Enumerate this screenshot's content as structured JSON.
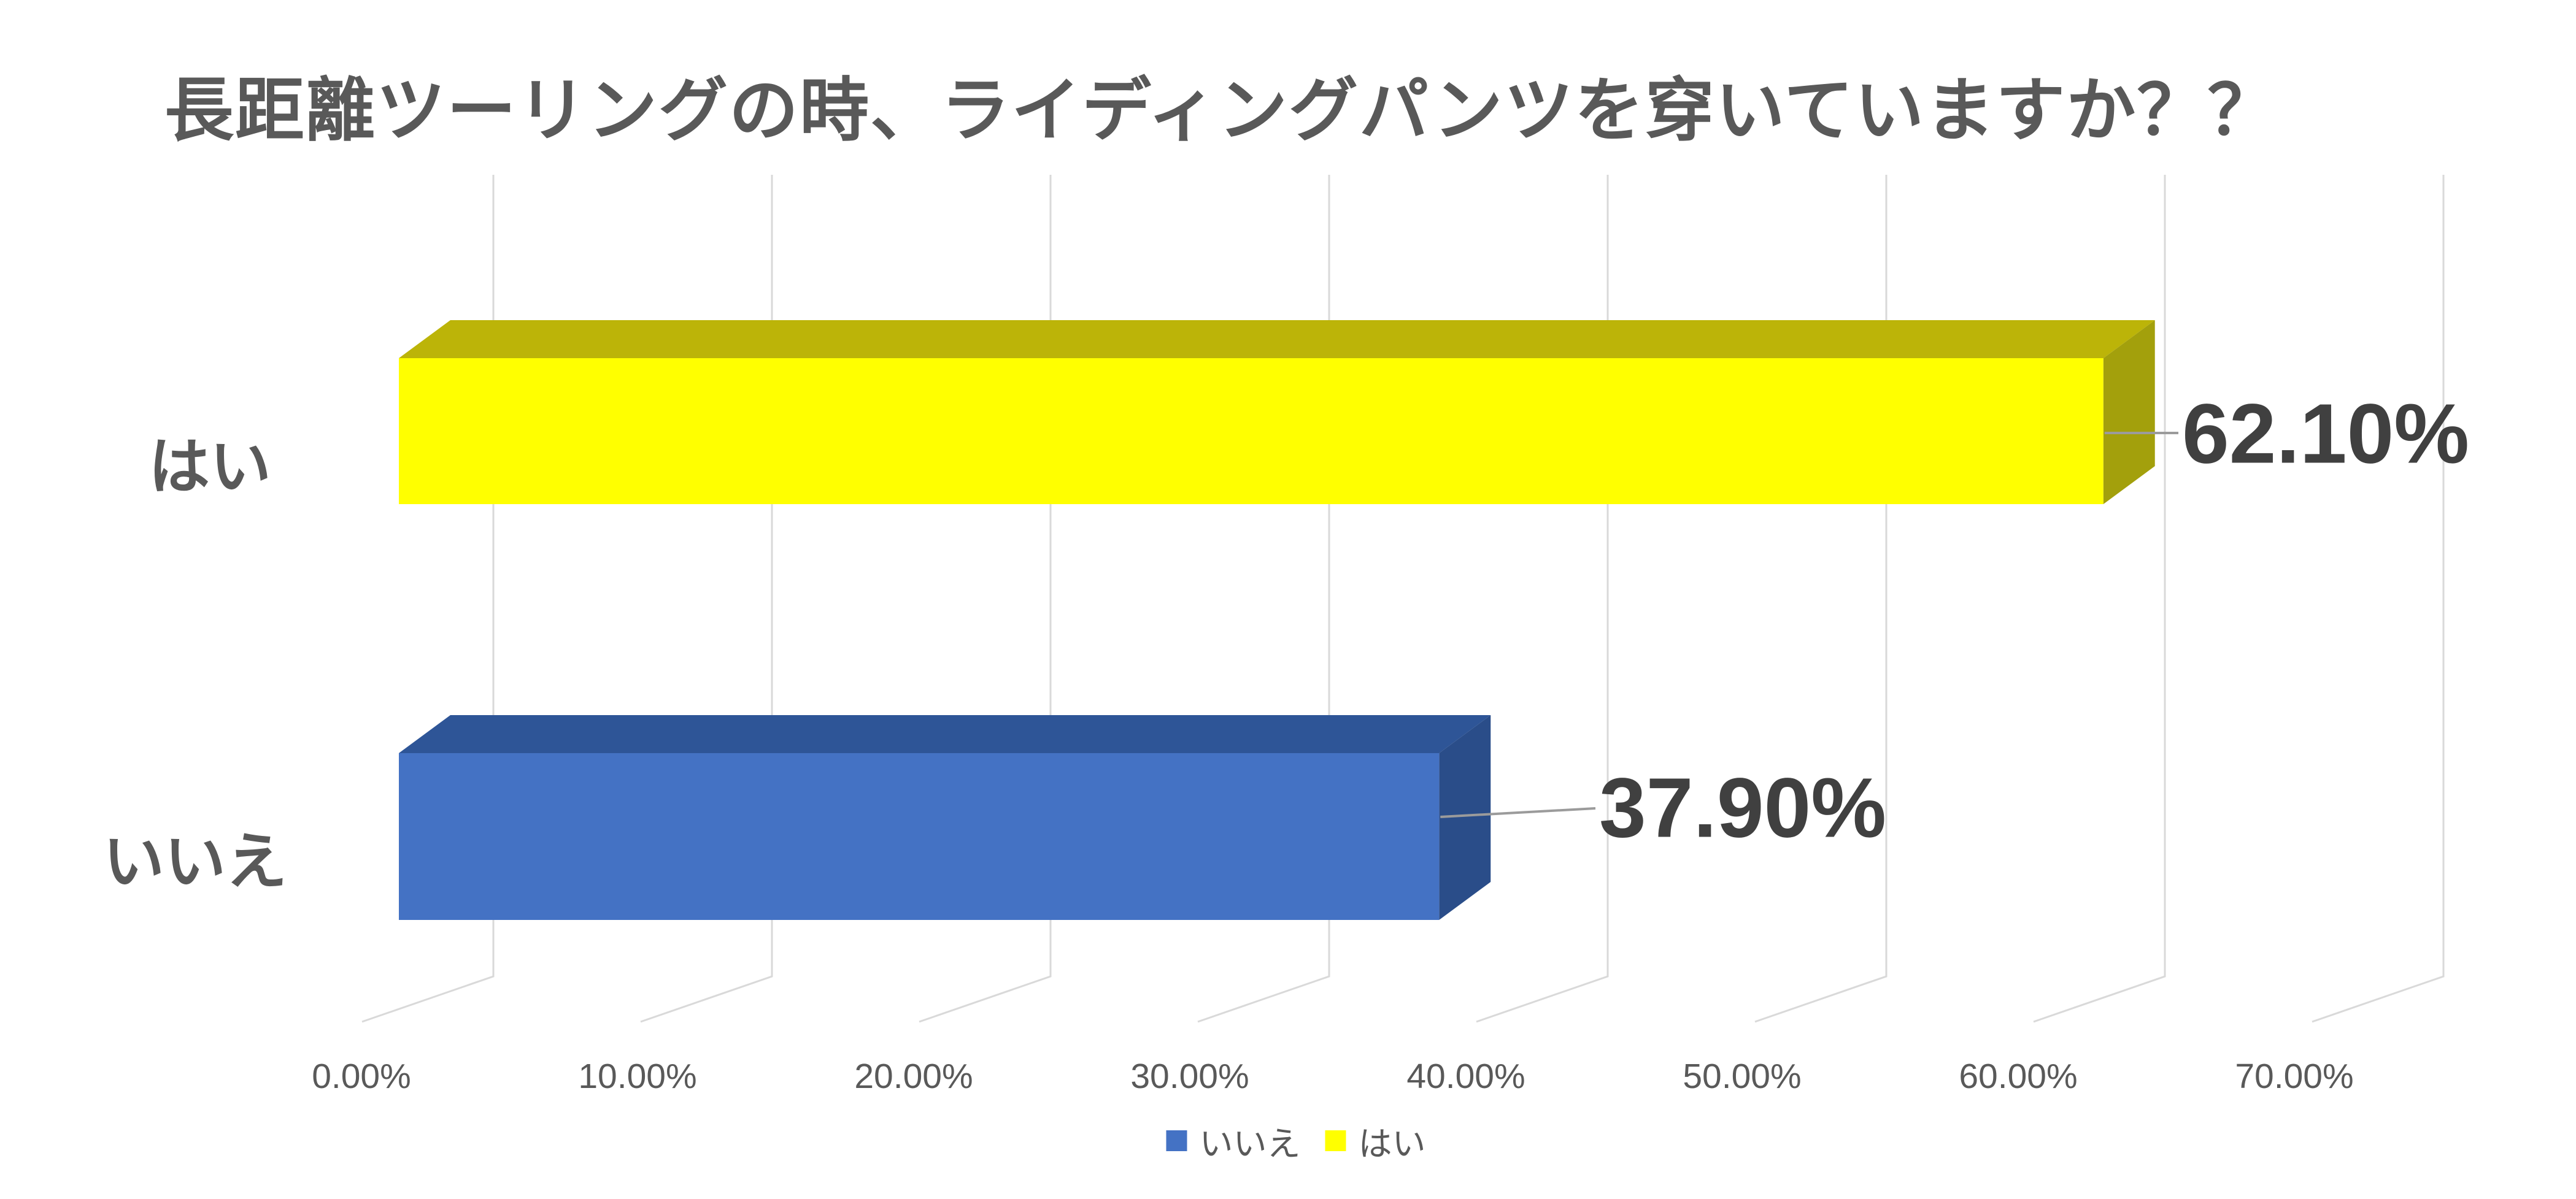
{
  "title": "長距離ツーリングの時、ライディングパンツを穿いていますか？？",
  "colors": {
    "title_text": "#595959",
    "axis_text": "#595959",
    "data_label_text": "#404040",
    "gridline": "#d9d9d9",
    "leader_line": "#9b9b9b",
    "background": "#ffffff"
  },
  "chart_data": {
    "type": "bar",
    "orientation": "horizontal",
    "style": "3d",
    "title": "長距離ツーリングの時、ライディングパンツを穿いていますか？？",
    "categories": [
      "はい",
      "いいえ"
    ],
    "series": [
      {
        "category": "はい",
        "value": 62.1,
        "label": "62.10%",
        "color_front": "#ffff00",
        "color_top": "#bcb408",
        "color_side": "#a3a00c"
      },
      {
        "category": "いいえ",
        "value": 37.9,
        "label": "37.90%",
        "color_front": "#4472c4",
        "color_top": "#2e5597",
        "color_side": "#2a4d89"
      }
    ],
    "x_axis": {
      "min": 0,
      "max": 70,
      "step": 10,
      "ticks": [
        "0.00%",
        "10.00%",
        "20.00%",
        "30.00%",
        "40.00%",
        "50.00%",
        "60.00%",
        "70.00%"
      ]
    },
    "gridlines": true,
    "legend_position": "bottom",
    "legend": [
      {
        "label": "いいえ",
        "color": "#4472c4"
      },
      {
        "label": "はい",
        "color": "#ffff00"
      }
    ]
  }
}
